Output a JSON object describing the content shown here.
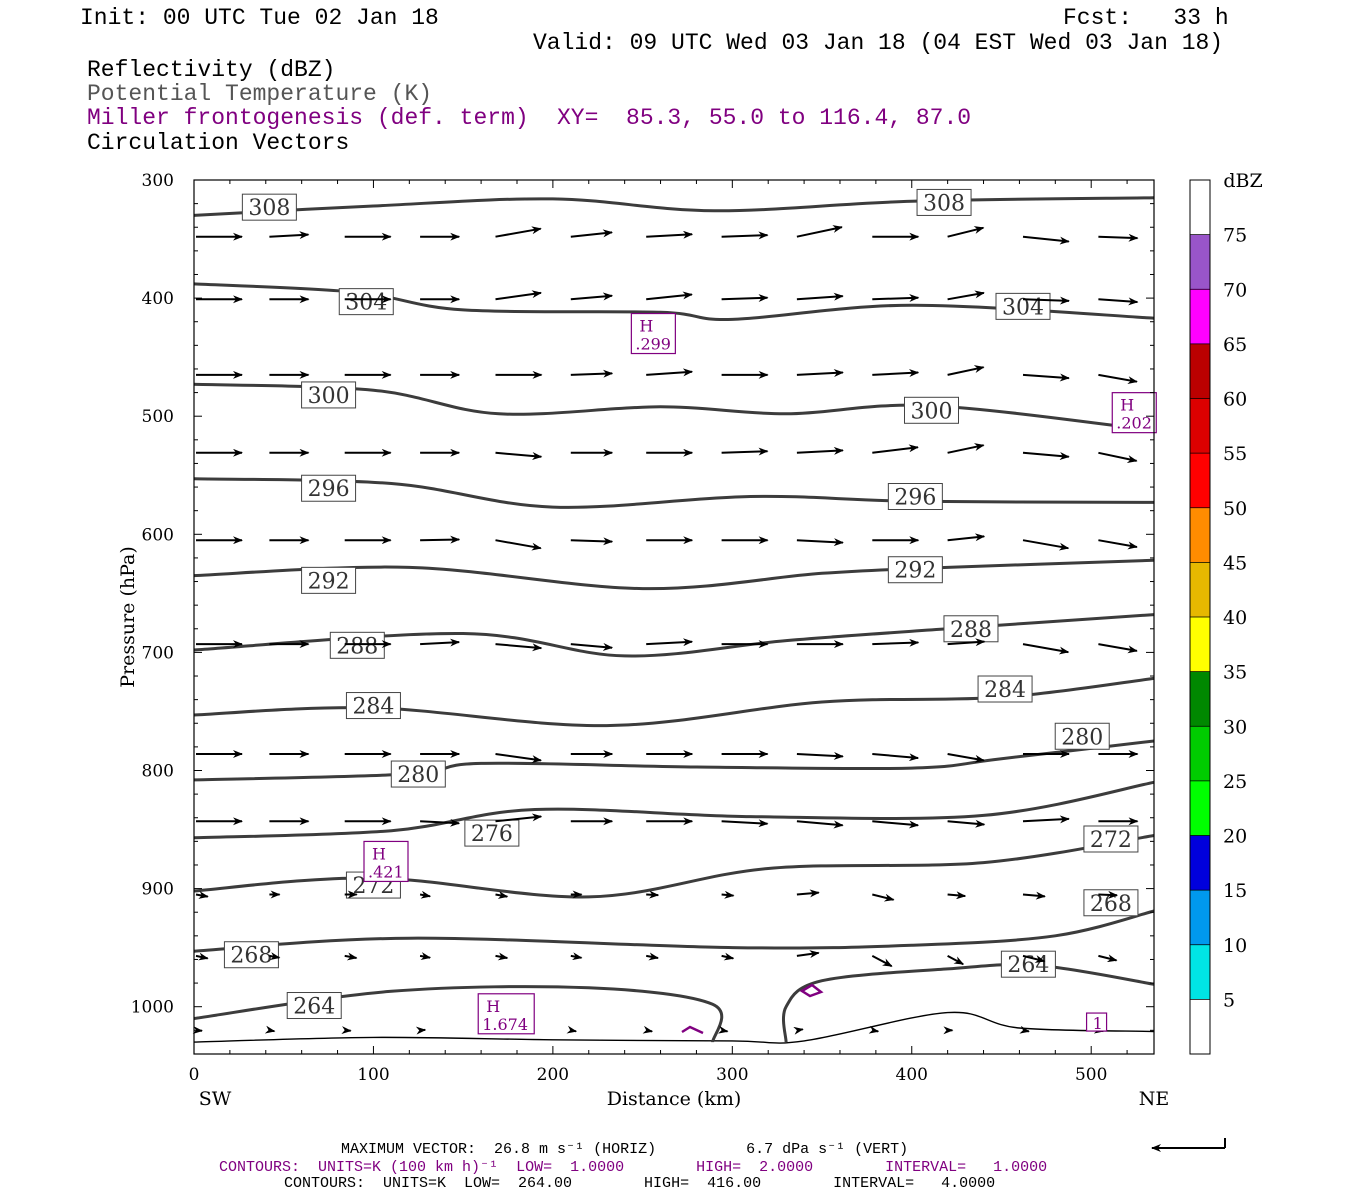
{
  "header": {
    "init": "Init: 00 UTC Tue 02 Jan 18",
    "fcst": "Fcst:   33 h",
    "valid": "Valid: 09 UTC Wed 03 Jan 18 (04 EST Wed 03 Jan 18)"
  },
  "fields": {
    "reflectivity": "Reflectivity (dBZ)",
    "theta": "Potential Temperature (K)",
    "miller": "Miller frontogenesis (def. term)",
    "xy": "XY=  85.3, 55.0 to 116.4, 87.0",
    "vectors": "Circulation Vectors"
  },
  "footer": {
    "max_vector": "MAXIMUM VECTOR:  26.8 m s⁻¹ (HORIZ)          6.7 dPa s⁻¹ (VERT)",
    "contours1": "CONTOURS:  UNITS=K (100 km h)⁻¹  LOW=  1.0000        HIGH=  2.0000        INTERVAL=   1.0000",
    "contours2": "CONTOURS:  UNITS=K  LOW=  264.00        HIGH=  416.00        INTERVAL=   4.0000"
  },
  "colors": {
    "theta_line": "#3c3c3c",
    "miller": "#800080",
    "colorbar": [
      "#ffffff",
      "#00e5e5",
      "#0099ee",
      "#0000dd",
      "#00ff00",
      "#00cc00",
      "#008800",
      "#ffff00",
      "#e6b800",
      "#ff8c00",
      "#ff0000",
      "#dd0000",
      "#bb0000",
      "#ff00ff",
      "#9955c9",
      "#ffffff"
    ]
  },
  "chart_data": {
    "type": "cross-section",
    "xlabel": "Distance (km)",
    "ylabel": "Pressure (hPa)",
    "xlim": [
      0,
      535
    ],
    "ylim": [
      300,
      1030
    ],
    "y_scale": "linear",
    "x_ticks": [
      0,
      100,
      200,
      300,
      400,
      500
    ],
    "y_ticks": [
      300,
      400,
      500,
      600,
      700,
      800,
      900,
      1000
    ],
    "left_end_label": "SW",
    "right_end_label": "NE",
    "colorbar": {
      "unit": "dBZ",
      "levels": [
        5,
        10,
        15,
        20,
        25,
        30,
        35,
        40,
        45,
        50,
        55,
        60,
        65,
        70,
        75
      ]
    },
    "theta_contours": [
      {
        "value": 308,
        "points": [
          [
            0,
            330
          ],
          [
            100,
            322
          ],
          [
            200,
            316
          ],
          [
            290,
            326
          ],
          [
            400,
            318
          ],
          [
            535,
            315
          ]
        ],
        "labels": [
          [
            42,
            323
          ],
          [
            418,
            319
          ]
        ]
      },
      {
        "value": 304,
        "points": [
          [
            0,
            388
          ],
          [
            90,
            395
          ],
          [
            150,
            410
          ],
          [
            260,
            412
          ],
          [
            300,
            418
          ],
          [
            400,
            406
          ],
          [
            535,
            417
          ]
        ],
        "labels": [
          [
            96,
            403
          ],
          [
            462,
            407
          ]
        ]
      },
      {
        "value": 300,
        "points": [
          [
            0,
            473
          ],
          [
            100,
            478
          ],
          [
            170,
            498
          ],
          [
            260,
            492
          ],
          [
            330,
            498
          ],
          [
            410,
            491
          ],
          [
            535,
            512
          ]
        ],
        "labels": [
          [
            75,
            482
          ],
          [
            411,
            495
          ]
        ]
      },
      {
        "value": 296,
        "points": [
          [
            0,
            553
          ],
          [
            110,
            557
          ],
          [
            200,
            577
          ],
          [
            310,
            568
          ],
          [
            400,
            572
          ],
          [
            535,
            573
          ]
        ],
        "labels": [
          [
            75,
            561
          ],
          [
            402,
            568
          ]
        ]
      },
      {
        "value": 292,
        "points": [
          [
            0,
            635
          ],
          [
            120,
            628
          ],
          [
            250,
            646
          ],
          [
            350,
            633
          ],
          [
            420,
            628
          ],
          [
            535,
            622
          ]
        ],
        "labels": [
          [
            75,
            639
          ],
          [
            402,
            630
          ]
        ]
      },
      {
        "value": 288,
        "points": [
          [
            0,
            698
          ],
          [
            150,
            684
          ],
          [
            240,
            703
          ],
          [
            330,
            690
          ],
          [
            420,
            680
          ],
          [
            535,
            668
          ]
        ],
        "labels": [
          [
            91,
            694
          ],
          [
            433,
            680
          ]
        ]
      },
      {
        "value": 284,
        "points": [
          [
            0,
            753
          ],
          [
            100,
            747
          ],
          [
            230,
            762
          ],
          [
            350,
            742
          ],
          [
            450,
            738
          ],
          [
            535,
            722
          ]
        ],
        "labels": [
          [
            100,
            745
          ],
          [
            452,
            731
          ]
        ]
      },
      {
        "value": 280,
        "points": [
          [
            0,
            808
          ],
          [
            120,
            803
          ],
          [
            160,
            794
          ],
          [
            280,
            797
          ],
          [
            400,
            798
          ],
          [
            450,
            790
          ],
          [
            535,
            775
          ]
        ],
        "labels": [
          [
            125,
            803
          ],
          [
            495,
            771
          ]
        ]
      },
      {
        "value": 276,
        "points": [
          [
            0,
            857
          ],
          [
            110,
            851
          ],
          [
            190,
            833
          ],
          [
            310,
            839
          ],
          [
            440,
            838
          ],
          [
            535,
            810
          ]
        ],
        "labels": [
          [
            166,
            853
          ]
        ]
      },
      {
        "value": 272,
        "points": [
          [
            0,
            902
          ],
          [
            100,
            891
          ],
          [
            220,
            907
          ],
          [
            320,
            883
          ],
          [
            440,
            878
          ],
          [
            535,
            855
          ]
        ],
        "labels": [
          [
            100,
            897
          ],
          [
            511,
            858
          ]
        ]
      },
      {
        "value": 268,
        "points": [
          [
            0,
            953
          ],
          [
            120,
            942
          ],
          [
            300,
            950
          ],
          [
            400,
            948
          ],
          [
            480,
            940
          ],
          [
            535,
            919
          ]
        ],
        "labels": [
          [
            32,
            956
          ],
          [
            511,
            912
          ]
        ]
      },
      {
        "value": 264,
        "points": [
          [
            0,
            1010
          ],
          [
            110,
            987
          ],
          [
            220,
            984
          ],
          [
            289,
            998
          ],
          [
            289,
            1030
          ]
        ],
        "labels": [
          [
            67,
            999
          ]
        ]
      },
      {
        "value": 264,
        "points": [
          [
            330,
            1030
          ],
          [
            330,
            1000
          ],
          [
            350,
            978
          ],
          [
            420,
            968
          ],
          [
            470,
            965
          ],
          [
            535,
            981
          ]
        ],
        "labels": [
          [
            465,
            964
          ]
        ]
      }
    ],
    "miller_extrema": [
      {
        "label": "H",
        "value": ".299",
        "x": 256,
        "y": 430
      },
      {
        "label": "H",
        "value": ".202",
        "x": 524,
        "y": 497
      },
      {
        "label": "H",
        "value": ".421",
        "x": 107,
        "y": 877
      },
      {
        "label": "H",
        "value": "1.674",
        "x": 174,
        "y": 1006
      },
      {
        "label": "",
        "value": "1",
        "x": 503,
        "y": 1013
      }
    ],
    "terrain": [
      [
        0,
        1030
      ],
      [
        100,
        1026
      ],
      [
        200,
        1028
      ],
      [
        300,
        1029
      ],
      [
        340,
        1029
      ],
      [
        420,
        1005
      ],
      [
        460,
        1018
      ],
      [
        535,
        1021
      ]
    ],
    "vector_rows": [
      {
        "p": 348,
        "angles": [
          0,
          -3,
          0,
          0,
          -10,
          -6,
          -3,
          -2,
          -12,
          0,
          -14,
          6,
          2
        ]
      },
      {
        "p": 401,
        "angles": [
          0,
          0,
          0,
          0,
          -8,
          -5,
          -6,
          -2,
          -4,
          -2,
          -10,
          2,
          4
        ]
      },
      {
        "p": 465,
        "angles": [
          0,
          0,
          0,
          0,
          0,
          -2,
          -4,
          0,
          -3,
          -3,
          -12,
          4,
          10
        ]
      },
      {
        "p": 531,
        "angles": [
          0,
          0,
          0,
          0,
          5,
          0,
          0,
          -2,
          -3,
          -7,
          -12,
          5,
          12
        ]
      },
      {
        "p": 605,
        "angles": [
          0,
          0,
          0,
          -1,
          10,
          2,
          0,
          0,
          3,
          0,
          -6,
          10,
          10
        ]
      },
      {
        "p": 693,
        "angles": [
          0,
          0,
          0,
          -3,
          5,
          5,
          -3,
          0,
          0,
          -2,
          -4,
          10,
          10
        ]
      },
      {
        "p": 786,
        "angles": [
          0,
          0,
          0,
          0,
          8,
          0,
          0,
          0,
          3,
          5,
          10,
          0,
          0
        ]
      },
      {
        "p": 843,
        "angles": [
          0,
          0,
          0,
          3,
          -6,
          0,
          0,
          3,
          5,
          5,
          5,
          -3,
          0
        ]
      },
      {
        "p": 905,
        "angles": [
          10,
          0,
          0,
          10,
          10,
          0,
          3,
          5,
          -5,
          14,
          5,
          5,
          2
        ]
      },
      {
        "p": 957,
        "angles": [
          12,
          10,
          10,
          10,
          10,
          10,
          10,
          12,
          -8,
          28,
          28,
          14,
          14
        ]
      },
      {
        "p": 1020,
        "angles": [
          5,
          10,
          5,
          -5,
          10,
          10,
          10,
          10,
          -10,
          10,
          0,
          10,
          10
        ]
      }
    ],
    "vector_lengths": [
      1.0,
      0.85,
      1.0,
      0.85,
      1.0,
      0.9,
      1.0,
      1.0,
      1.0,
      1.0,
      0.8,
      1.0,
      0.85
    ]
  }
}
